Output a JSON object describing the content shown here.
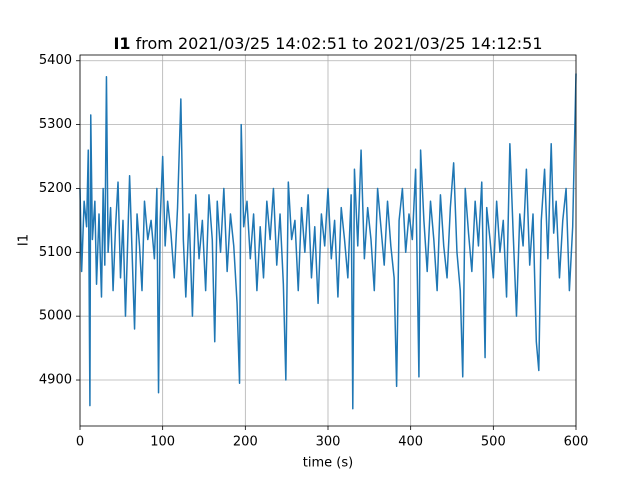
{
  "chart_data": {
    "type": "line",
    "title_bold": "I1",
    "title": "from 2021/03/25 14:02:51 to 2021/03/25 14:12:51",
    "x_label": "time (s)",
    "y_label": "I1",
    "xlim": [
      0,
      600
    ],
    "ylim": [
      4828,
      5409
    ],
    "xticks": [
      0,
      100,
      200,
      300,
      400,
      500,
      600
    ],
    "yticks": [
      4900,
      5000,
      5100,
      5200,
      5300,
      5400
    ],
    "grid": true,
    "series": [
      {
        "name": "I1",
        "color": "#1f77b4",
        "x": [
          0,
          2,
          5,
          8,
          10,
          12,
          13,
          15,
          18,
          20,
          23,
          26,
          28,
          30,
          32,
          34,
          37,
          40,
          43,
          46,
          49,
          52,
          55,
          58,
          60,
          63,
          66,
          69,
          72,
          75,
          78,
          82,
          86,
          90,
          93,
          95,
          97,
          100,
          103,
          106,
          110,
          114,
          118,
          122,
          125,
          128,
          132,
          136,
          140,
          144,
          148,
          152,
          156,
          160,
          163,
          166,
          170,
          174,
          178,
          182,
          186,
          190,
          193,
          195,
          198,
          202,
          206,
          210,
          214,
          218,
          222,
          226,
          230,
          234,
          238,
          242,
          246,
          249,
          252,
          256,
          260,
          264,
          268,
          272,
          276,
          280,
          284,
          288,
          292,
          296,
          300,
          304,
          308,
          312,
          316,
          320,
          324,
          328,
          330,
          332,
          336,
          340,
          344,
          348,
          352,
          356,
          360,
          364,
          368,
          372,
          376,
          380,
          383,
          386,
          390,
          394,
          398,
          402,
          406,
          410,
          412,
          416,
          420,
          424,
          428,
          432,
          436,
          440,
          444,
          448,
          452,
          456,
          460,
          463,
          466,
          470,
          474,
          478,
          482,
          486,
          490,
          492,
          496,
          500,
          504,
          508,
          512,
          516,
          520,
          524,
          528,
          532,
          536,
          540,
          544,
          548,
          552,
          555,
          558,
          562,
          566,
          570,
          573,
          576,
          580,
          584,
          588,
          592,
          596,
          600
        ],
        "values": [
          5200,
          5070,
          5180,
          5140,
          5260,
          4860,
          5315,
          5120,
          5180,
          5050,
          5160,
          5030,
          5200,
          5080,
          5375,
          5100,
          5170,
          5040,
          5140,
          5210,
          5060,
          5150,
          5000,
          5130,
          5220,
          5100,
          4980,
          5160,
          5110,
          5040,
          5180,
          5120,
          5150,
          5090,
          5200,
          4880,
          5150,
          5250,
          5110,
          5180,
          5130,
          5060,
          5170,
          5340,
          5120,
          5030,
          5160,
          5000,
          5190,
          5090,
          5150,
          5040,
          5190,
          5120,
          4960,
          5180,
          5100,
          5200,
          5070,
          5160,
          5110,
          5020,
          4895,
          5300,
          5140,
          5180,
          5090,
          5160,
          5040,
          5140,
          5060,
          5180,
          5120,
          5200,
          5080,
          5160,
          5050,
          4900,
          5210,
          5120,
          5150,
          5040,
          5170,
          5100,
          5190,
          5060,
          5140,
          5020,
          5160,
          5110,
          5200,
          5090,
          5150,
          5030,
          5170,
          5120,
          5060,
          5190,
          4855,
          5230,
          5110,
          5260,
          5090,
          5170,
          5120,
          5040,
          5200,
          5140,
          5080,
          5180,
          5110,
          5060,
          4890,
          5150,
          5200,
          5100,
          5160,
          5120,
          5230,
          4905,
          5260,
          5150,
          5070,
          5180,
          5120,
          5040,
          5190,
          5110,
          5060,
          5170,
          5240,
          5100,
          5040,
          4905,
          5200,
          5130,
          5070,
          5180,
          5110,
          5210,
          4935,
          5170,
          5120,
          5060,
          5180,
          5100,
          5150,
          5030,
          5270,
          5130,
          5000,
          5160,
          5110,
          5230,
          5080,
          5160,
          4960,
          4915,
          5150,
          5230,
          5090,
          5270,
          5130,
          5180,
          5060,
          5150,
          5200,
          5040,
          5140,
          5380
        ]
      }
    ]
  }
}
